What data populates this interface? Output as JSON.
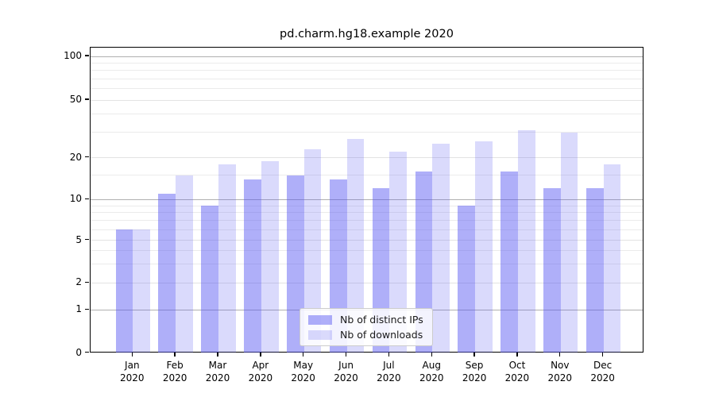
{
  "chart_data": {
    "type": "bar",
    "title": "pd.charm.hg18.example 2020",
    "categories": [
      {
        "month": "Jan",
        "year": "2020"
      },
      {
        "month": "Feb",
        "year": "2020"
      },
      {
        "month": "Mar",
        "year": "2020"
      },
      {
        "month": "Apr",
        "year": "2020"
      },
      {
        "month": "May",
        "year": "2020"
      },
      {
        "month": "Jun",
        "year": "2020"
      },
      {
        "month": "Jul",
        "year": "2020"
      },
      {
        "month": "Aug",
        "year": "2020"
      },
      {
        "month": "Sep",
        "year": "2020"
      },
      {
        "month": "Oct",
        "year": "2020"
      },
      {
        "month": "Nov",
        "year": "2020"
      },
      {
        "month": "Dec",
        "year": "2020"
      }
    ],
    "series": [
      {
        "name": "Nb of distinct IPs",
        "values": [
          6,
          11,
          9,
          14,
          15,
          14,
          12,
          16,
          9,
          16,
          12,
          12
        ],
        "color": "rgba(86,86,243,0.47)"
      },
      {
        "name": "Nb of downloads",
        "values": [
          6,
          15,
          18,
          19,
          23,
          27,
          22,
          25,
          26,
          31,
          30,
          18
        ],
        "color": "rgba(86,86,243,0.22)"
      }
    ],
    "y_axis": {
      "scale": "log-like",
      "major_ticks": [
        0,
        1,
        2,
        5,
        10,
        20,
        50,
        100
      ],
      "minor_ticks": [
        3,
        4,
        6,
        7,
        8,
        9,
        15,
        30,
        40,
        60,
        70,
        80,
        90
      ],
      "range": [
        0,
        110
      ]
    },
    "x_axis": {
      "label": ""
    },
    "legend": {
      "position": "bottom-center"
    },
    "grid": true,
    "colors": {
      "decade_gridline": "#b0b0b0",
      "light_gridline": "#ebebeb",
      "axis": "#000000"
    }
  }
}
